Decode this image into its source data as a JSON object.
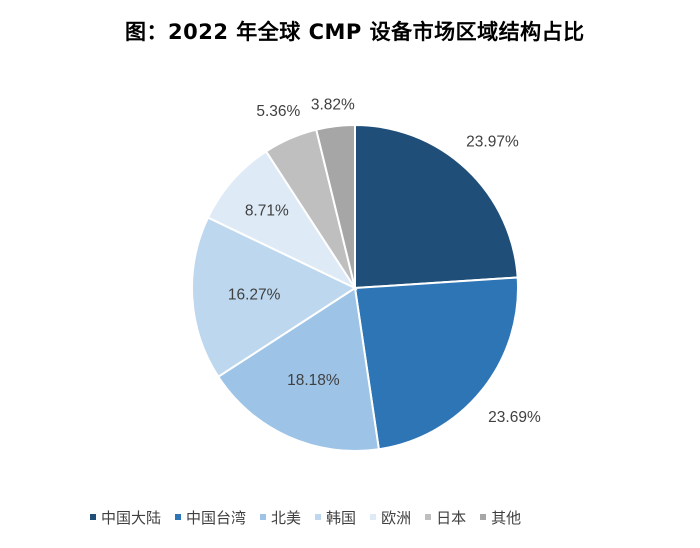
{
  "chart_data": {
    "type": "pie",
    "title": "图：2022 年全球 CMP 设备市场区域结构占比",
    "categories": [
      "中国大陆",
      "中国台湾",
      "北美",
      "韩国",
      "欧洲",
      "日本",
      "其他"
    ],
    "values": [
      23.97,
      23.69,
      18.18,
      16.27,
      8.71,
      5.36,
      3.82
    ],
    "labels": [
      "23.97%",
      "23.69%",
      "18.18%",
      "16.27%",
      "8.71%",
      "5.36%",
      "3.82%"
    ],
    "colors": [
      "#1f4e79",
      "#2e75b6",
      "#9dc3e6",
      "#bdd7ee",
      "#deebf7",
      "#bfbfbf",
      "#a6a6a6"
    ],
    "legend": "bottom"
  }
}
